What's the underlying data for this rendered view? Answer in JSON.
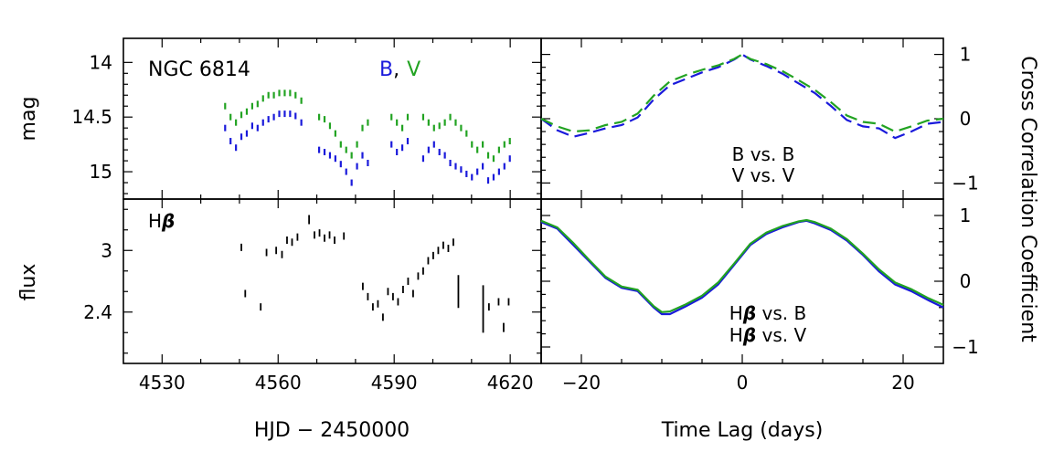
{
  "chart_data": [
    {
      "panel": "top-left",
      "type": "scatter",
      "annotation": "NGC 6814",
      "ylabel": "mag",
      "xlim": [
        4520,
        4628
      ],
      "ylim": [
        15.25,
        13.78
      ],
      "y_inverted": true,
      "yticks": [
        14,
        14.5,
        15
      ],
      "ytick_labels": [
        "14",
        "14.5",
        "15"
      ],
      "legend": {
        "b": "B",
        "sep": ",",
        "v": "V"
      },
      "series": [
        {
          "name": "B",
          "color": "#1a1adb",
          "points": [
            [
              4546.3,
              14.6
            ],
            [
              4547.7,
              14.72
            ],
            [
              4549.1,
              14.78
            ],
            [
              4550.5,
              14.68
            ],
            [
              4551.9,
              14.65
            ],
            [
              4553.3,
              14.58
            ],
            [
              4554.7,
              14.6
            ],
            [
              4556.1,
              14.55
            ],
            [
              4557.5,
              14.52
            ],
            [
              4558.9,
              14.5
            ],
            [
              4560.3,
              14.47
            ],
            [
              4561.7,
              14.47
            ],
            [
              4563.1,
              14.47
            ],
            [
              4564.5,
              14.49
            ],
            [
              4566.0,
              14.55
            ],
            [
              4570.6,
              14.8
            ],
            [
              4572.0,
              14.82
            ],
            [
              4573.4,
              14.85
            ],
            [
              4574.8,
              14.88
            ],
            [
              4576.2,
              14.93
            ],
            [
              4577.6,
              15.0
            ],
            [
              4579.0,
              15.1
            ],
            [
              4580.4,
              14.95
            ],
            [
              4581.8,
              14.85
            ],
            [
              4583.2,
              14.92
            ],
            [
              4589.3,
              14.75
            ],
            [
              4590.7,
              14.82
            ],
            [
              4592.1,
              14.78
            ],
            [
              4593.5,
              14.72
            ],
            [
              4597.5,
              14.88
            ],
            [
              4598.9,
              14.8
            ],
            [
              4600.3,
              14.75
            ],
            [
              4601.7,
              14.82
            ],
            [
              4603.1,
              14.85
            ],
            [
              4604.5,
              14.92
            ],
            [
              4605.9,
              14.95
            ],
            [
              4607.3,
              14.98
            ],
            [
              4608.7,
              15.02
            ],
            [
              4610.1,
              15.05
            ],
            [
              4611.5,
              15.0
            ],
            [
              4612.9,
              14.95
            ],
            [
              4614.3,
              15.08
            ],
            [
              4615.7,
              15.05
            ],
            [
              4617.1,
              15.0
            ],
            [
              4618.5,
              14.95
            ],
            [
              4619.9,
              14.88
            ]
          ]
        },
        {
          "name": "V",
          "color": "#22a322",
          "points": [
            [
              4546.3,
              14.4
            ],
            [
              4547.7,
              14.5
            ],
            [
              4549.1,
              14.55
            ],
            [
              4550.5,
              14.48
            ],
            [
              4551.9,
              14.45
            ],
            [
              4553.3,
              14.4
            ],
            [
              4554.7,
              14.38
            ],
            [
              4556.1,
              14.33
            ],
            [
              4557.5,
              14.3
            ],
            [
              4558.9,
              14.3
            ],
            [
              4560.3,
              14.28
            ],
            [
              4561.7,
              14.28
            ],
            [
              4563.1,
              14.28
            ],
            [
              4564.5,
              14.3
            ],
            [
              4566.0,
              14.35
            ],
            [
              4570.6,
              14.5
            ],
            [
              4572.0,
              14.52
            ],
            [
              4573.4,
              14.58
            ],
            [
              4574.8,
              14.65
            ],
            [
              4576.2,
              14.75
            ],
            [
              4577.6,
              14.8
            ],
            [
              4579.0,
              14.85
            ],
            [
              4580.4,
              14.75
            ],
            [
              4581.8,
              14.6
            ],
            [
              4583.2,
              14.55
            ],
            [
              4589.3,
              14.5
            ],
            [
              4590.7,
              14.55
            ],
            [
              4592.1,
              14.6
            ],
            [
              4593.5,
              14.5
            ],
            [
              4597.5,
              14.5
            ],
            [
              4598.9,
              14.55
            ],
            [
              4600.3,
              14.6
            ],
            [
              4601.7,
              14.58
            ],
            [
              4603.1,
              14.55
            ],
            [
              4604.5,
              14.5
            ],
            [
              4605.9,
              14.55
            ],
            [
              4607.3,
              14.6
            ],
            [
              4608.7,
              14.65
            ],
            [
              4610.1,
              14.75
            ],
            [
              4611.5,
              14.8
            ],
            [
              4612.9,
              14.75
            ],
            [
              4614.3,
              14.85
            ],
            [
              4615.7,
              14.88
            ],
            [
              4617.1,
              14.8
            ],
            [
              4618.5,
              14.75
            ],
            [
              4619.9,
              14.72
            ]
          ]
        }
      ]
    },
    {
      "panel": "bottom-left",
      "type": "scatter",
      "annotation": "Hβ",
      "ylabel": "flux",
      "xlabel": "HJD − 2450000",
      "xlim": [
        4520,
        4628
      ],
      "ylim": [
        1.9,
        3.5
      ],
      "yticks": [
        2.4,
        3
      ],
      "ytick_labels": [
        "2.4",
        "3"
      ],
      "xticks": [
        4530,
        4560,
        4590,
        4620
      ],
      "xtick_labels": [
        "4530",
        "4560",
        "4590",
        "4620"
      ],
      "series": [
        {
          "name": "Hβ",
          "color": "#000000",
          "points": [
            [
              4550.5,
              3.03
            ],
            [
              4551.5,
              2.58
            ],
            [
              4555.5,
              2.45
            ],
            [
              4557.0,
              2.98
            ],
            [
              4559.5,
              3.0
            ],
            [
              4561.0,
              2.96
            ],
            [
              4562.3,
              3.1
            ],
            [
              4563.6,
              3.08
            ],
            [
              4565.0,
              3.13
            ],
            [
              4568.0,
              3.3
            ],
            [
              4569.4,
              3.15
            ],
            [
              4570.7,
              3.17
            ],
            [
              4572.0,
              3.12
            ],
            [
              4573.3,
              3.15
            ],
            [
              4574.6,
              3.1
            ],
            [
              4577.0,
              3.14
            ],
            [
              4581.9,
              2.65
            ],
            [
              4583.2,
              2.55
            ],
            [
              4584.5,
              2.45
            ],
            [
              4585.8,
              2.48
            ],
            [
              4587.1,
              2.35
            ],
            [
              4588.4,
              2.6
            ],
            [
              4589.7,
              2.55
            ],
            [
              4591.0,
              2.5
            ],
            [
              4592.3,
              2.62
            ],
            [
              4593.6,
              2.7
            ],
            [
              4594.9,
              2.58
            ],
            [
              4596.2,
              2.75
            ],
            [
              4597.5,
              2.8
            ],
            [
              4598.8,
              2.9
            ],
            [
              4600.1,
              2.95
            ],
            [
              4601.4,
              3.0
            ],
            [
              4602.7,
              3.05
            ],
            [
              4604.0,
              3.02
            ],
            [
              4605.3,
              3.08
            ],
            [
              4606.6,
              2.6
            ],
            [
              4613.0,
              2.43
            ],
            [
              4614.5,
              2.45
            ],
            [
              4617.0,
              2.5
            ],
            [
              4618.3,
              2.25
            ],
            [
              4619.6,
              2.5
            ]
          ]
        }
      ]
    },
    {
      "panel": "top-right",
      "type": "line",
      "xlim": [
        -25,
        25
      ],
      "ylim": [
        -1.25,
        1.25
      ],
      "yticks": [
        -1,
        0,
        1
      ],
      "ytick_labels": [
        "−1",
        "0",
        "1"
      ],
      "ylabel": "Cross Correlation Coefficient",
      "legend": [
        {
          "label": "B vs. B",
          "color": "#1a1adb"
        },
        {
          "label": "V vs. V",
          "color": "#22a322"
        }
      ],
      "series": [
        {
          "name": "B vs. B",
          "color": "#1a1adb",
          "dashed": true,
          "x": [
            -25,
            -23,
            -21,
            -19,
            -17,
            -15,
            -13,
            -11,
            -9,
            -7,
            -5,
            -3,
            -1,
            0,
            1,
            3,
            5,
            7,
            9,
            11,
            13,
            15,
            17,
            19,
            21,
            23,
            25
          ],
          "y": [
            0.0,
            -0.18,
            -0.28,
            -0.22,
            -0.15,
            -0.1,
            0.02,
            0.3,
            0.52,
            0.62,
            0.72,
            0.8,
            0.92,
            1.0,
            0.92,
            0.82,
            0.7,
            0.55,
            0.4,
            0.2,
            -0.02,
            -0.12,
            -0.15,
            -0.3,
            -0.2,
            -0.08,
            -0.05
          ]
        },
        {
          "name": "V vs. V",
          "color": "#22a322",
          "dashed": true,
          "x": [
            -25,
            -23,
            -21,
            -19,
            -17,
            -15,
            -13,
            -11,
            -9,
            -7,
            -5,
            -3,
            -1,
            0,
            1,
            3,
            5,
            7,
            9,
            11,
            13,
            15,
            17,
            19,
            21,
            23,
            25
          ],
          "y": [
            0.0,
            -0.12,
            -0.2,
            -0.18,
            -0.1,
            -0.05,
            0.08,
            0.36,
            0.58,
            0.68,
            0.76,
            0.83,
            0.93,
            1.0,
            0.93,
            0.85,
            0.74,
            0.6,
            0.45,
            0.26,
            0.05,
            -0.05,
            -0.08,
            -0.2,
            -0.12,
            -0.03,
            0.0
          ]
        }
      ]
    },
    {
      "panel": "bottom-right",
      "type": "line",
      "xlim": [
        -25,
        25
      ],
      "ylim": [
        -1.25,
        1.25
      ],
      "yticks": [
        -1,
        0,
        1
      ],
      "ytick_labels": [
        "−1",
        "0",
        "1"
      ],
      "xticks": [
        -20,
        0,
        20
      ],
      "xtick_labels": [
        "−20",
        "0",
        "20"
      ],
      "xlabel": "Time Lag (days)",
      "legend": [
        {
          "label": "Hβ vs. B",
          "color": "#1a1adb"
        },
        {
          "label": "Hβ vs. V",
          "color": "#22a322"
        }
      ],
      "series": [
        {
          "name": "Hβ vs. B",
          "color": "#1a1adb",
          "dashed": false,
          "x": [
            -25,
            -23,
            -21,
            -19,
            -17,
            -15,
            -13,
            -11,
            -10,
            -9,
            -7,
            -5,
            -3,
            -1,
            1,
            3,
            5,
            7,
            8,
            9,
            11,
            13,
            15,
            17,
            19,
            21,
            23,
            25
          ],
          "y": [
            0.9,
            0.8,
            0.55,
            0.3,
            0.05,
            -0.1,
            -0.15,
            -0.4,
            -0.5,
            -0.5,
            -0.38,
            -0.25,
            -0.05,
            0.25,
            0.55,
            0.72,
            0.82,
            0.9,
            0.92,
            0.88,
            0.78,
            0.62,
            0.4,
            0.15,
            -0.05,
            -0.15,
            -0.28,
            -0.4
          ]
        },
        {
          "name": "Hβ vs. V",
          "color": "#22a322",
          "dashed": false,
          "x": [
            -25,
            -23,
            -21,
            -19,
            -17,
            -15,
            -13,
            -11,
            -10,
            -9,
            -7,
            -5,
            -3,
            -1,
            1,
            3,
            5,
            7,
            8,
            9,
            11,
            13,
            15,
            17,
            19,
            21,
            23,
            25
          ],
          "y": [
            0.92,
            0.82,
            0.58,
            0.32,
            0.07,
            -0.08,
            -0.13,
            -0.38,
            -0.47,
            -0.46,
            -0.35,
            -0.22,
            -0.02,
            0.27,
            0.57,
            0.74,
            0.84,
            0.91,
            0.93,
            0.9,
            0.8,
            0.64,
            0.42,
            0.18,
            -0.02,
            -0.12,
            -0.25,
            -0.36
          ]
        }
      ]
    }
  ]
}
